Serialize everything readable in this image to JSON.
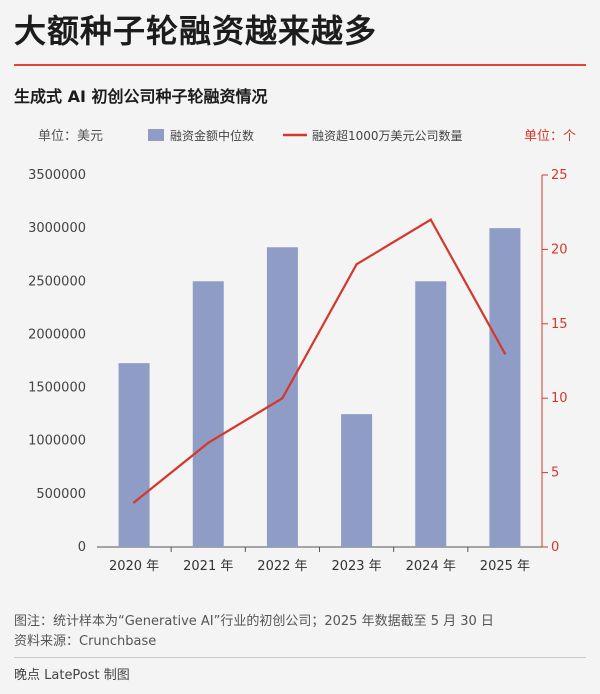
{
  "headline": "大额种子轮融资越来越多",
  "subtitle": "生成式 AI 初创公司种子轮融资情况",
  "chart_data": {
    "type": "bar",
    "categories": [
      "2020 年",
      "2021 年",
      "2022 年",
      "2023 年",
      "2024 年",
      "2025 年"
    ],
    "series": [
      {
        "name": "融资金额中位数",
        "type": "bar",
        "axis": "left",
        "color": "#8e9cc6",
        "values": [
          1730000,
          2500000,
          2820000,
          1250000,
          2500000,
          3000000
        ]
      },
      {
        "name": "融资超1000万美元公司数量",
        "type": "line",
        "axis": "right",
        "color": "#d4382d",
        "values": [
          3,
          7,
          10,
          19,
          22,
          13
        ]
      }
    ],
    "ylabel_left": "单位：美元",
    "ylabel_right": "单位：个",
    "ylim_left": [
      0,
      3500000
    ],
    "ylim_right": [
      0,
      25
    ],
    "yticks_left": [
      "0",
      "500000",
      "1000000",
      "1500000",
      "2000000",
      "2500000",
      "3000000",
      "3500000"
    ],
    "yticks_right": [
      "0",
      "5",
      "10",
      "15",
      "20",
      "25"
    ],
    "grid": false,
    "legend": "top"
  },
  "footer": {
    "note": "图注：统计样本为“Generative AI”行业的初创公司；2025 年数据截至 5 月 30 日",
    "source": "资料来源：Crunchbase"
  },
  "credit": "晚点 LatePost 制图",
  "colors": {
    "accent": "#e0453a",
    "bar": "#8e9cc6",
    "line": "#d4382d",
    "background": "#f4f4f4"
  }
}
